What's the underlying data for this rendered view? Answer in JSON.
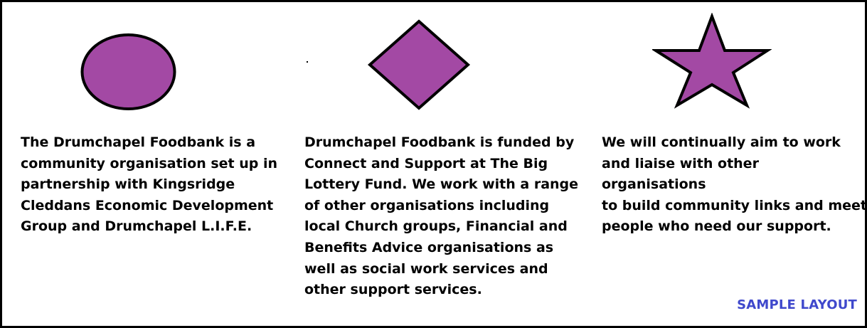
{
  "columns": [
    {
      "shape": "circle",
      "text": "The Drumchapel Foodbank is a\ncommunity organisation set up in\npartnership with Kingsridge\nCleddans Economic Development\nGroup and Drumchapel L.I.F.E."
    },
    {
      "shape": "diamond",
      "text": "Drumchapel Foodbank is funded by\nConnect and Support at The Big\nLottery Fund. We work with a range\nof other organisations including\nlocal Church groups, Financial and\nBenefits Advice organisations as\nwell as social work services and\nother support services."
    },
    {
      "shape": "star",
      "text": "We will continually aim to work\nand liaise with other organisations\nto build community links and meet\npeople who need our support."
    }
  ],
  "footer_label": "SAMPLE LAYOUT",
  "colors": {
    "shape_fill": "#a349a4",
    "shape_stroke": "#000000",
    "footer_text": "#3f48cc",
    "border": "#000000"
  }
}
